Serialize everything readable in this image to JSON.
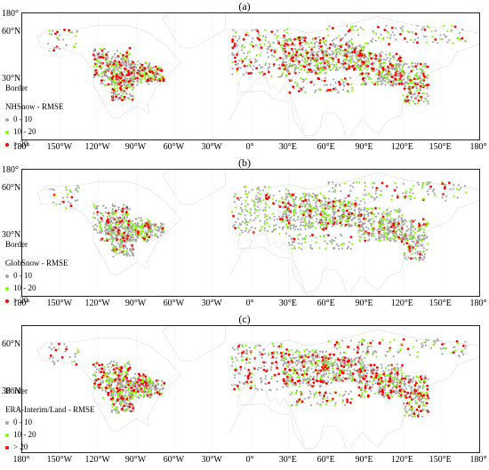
{
  "panels": [
    {
      "label": "(a)",
      "legend_header": "Border",
      "legend_title": "NHSnow - RMSE"
    },
    {
      "label": "(b)",
      "legend_header": "Border",
      "legend_title": "GlobSnow - RMSE"
    },
    {
      "label": "(c)",
      "legend_header": "Border",
      "legend_title": "ERA-Interim/Land - RMSE"
    }
  ],
  "legend_classes": [
    {
      "label": "0 - 10",
      "color": "#a6a6a6"
    },
    {
      "label": "10 - 20",
      "color": "#7dff00"
    },
    {
      "label": "> 20",
      "color": "#ff0000"
    }
  ],
  "x_ticks": [
    "180°",
    "150°W",
    "120°W",
    "90°W",
    "60°W",
    "30°W",
    "0°",
    "30°E",
    "60°E",
    "90°E",
    "120°E",
    "150°E",
    "180°"
  ],
  "y_ticks": [
    "180°",
    "60°N",
    "30°N"
  ]
}
